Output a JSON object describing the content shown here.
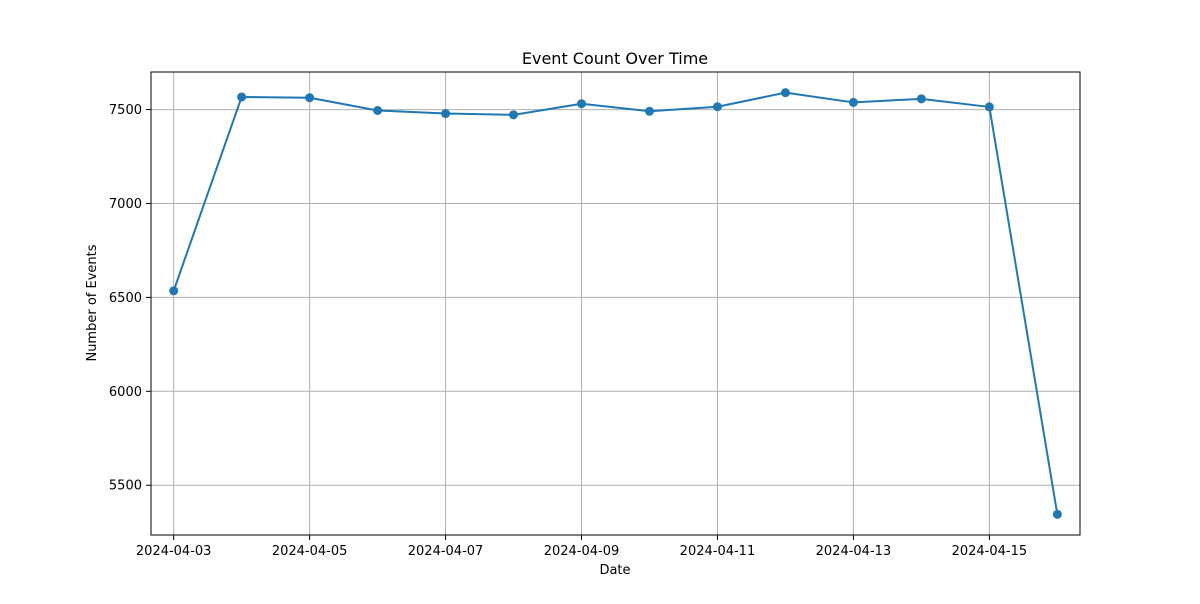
{
  "chart_data": {
    "type": "line",
    "title": "Event Count Over Time",
    "xlabel": "Date",
    "ylabel": "Number of Events",
    "x": [
      "2024-04-03",
      "2024-04-04",
      "2024-04-05",
      "2024-04-06",
      "2024-04-07",
      "2024-04-08",
      "2024-04-09",
      "2024-04-10",
      "2024-04-11",
      "2024-04-12",
      "2024-04-13",
      "2024-04-14",
      "2024-04-15",
      "2024-04-16"
    ],
    "series": [
      {
        "values": [
          6535,
          7567,
          7563,
          7495,
          7479,
          7472,
          7531,
          7491,
          7515,
          7590,
          7538,
          7557,
          7514,
          5345
        ]
      }
    ],
    "xticks": [
      "2024-04-03",
      "2024-04-05",
      "2024-04-07",
      "2024-04-09",
      "2024-04-11",
      "2024-04-13",
      "2024-04-15"
    ],
    "yticks": [
      5500,
      6000,
      6500,
      7000,
      7500
    ],
    "xlim": [
      "2024-04-02T16:00",
      "2024-04-16T08:00"
    ],
    "ylim": [
      5235,
      7700
    ],
    "grid": true,
    "marker": "circle",
    "colors": {
      "line": "#1f77b4",
      "grid": "#b0b0b0",
      "axes": "#000000"
    }
  }
}
